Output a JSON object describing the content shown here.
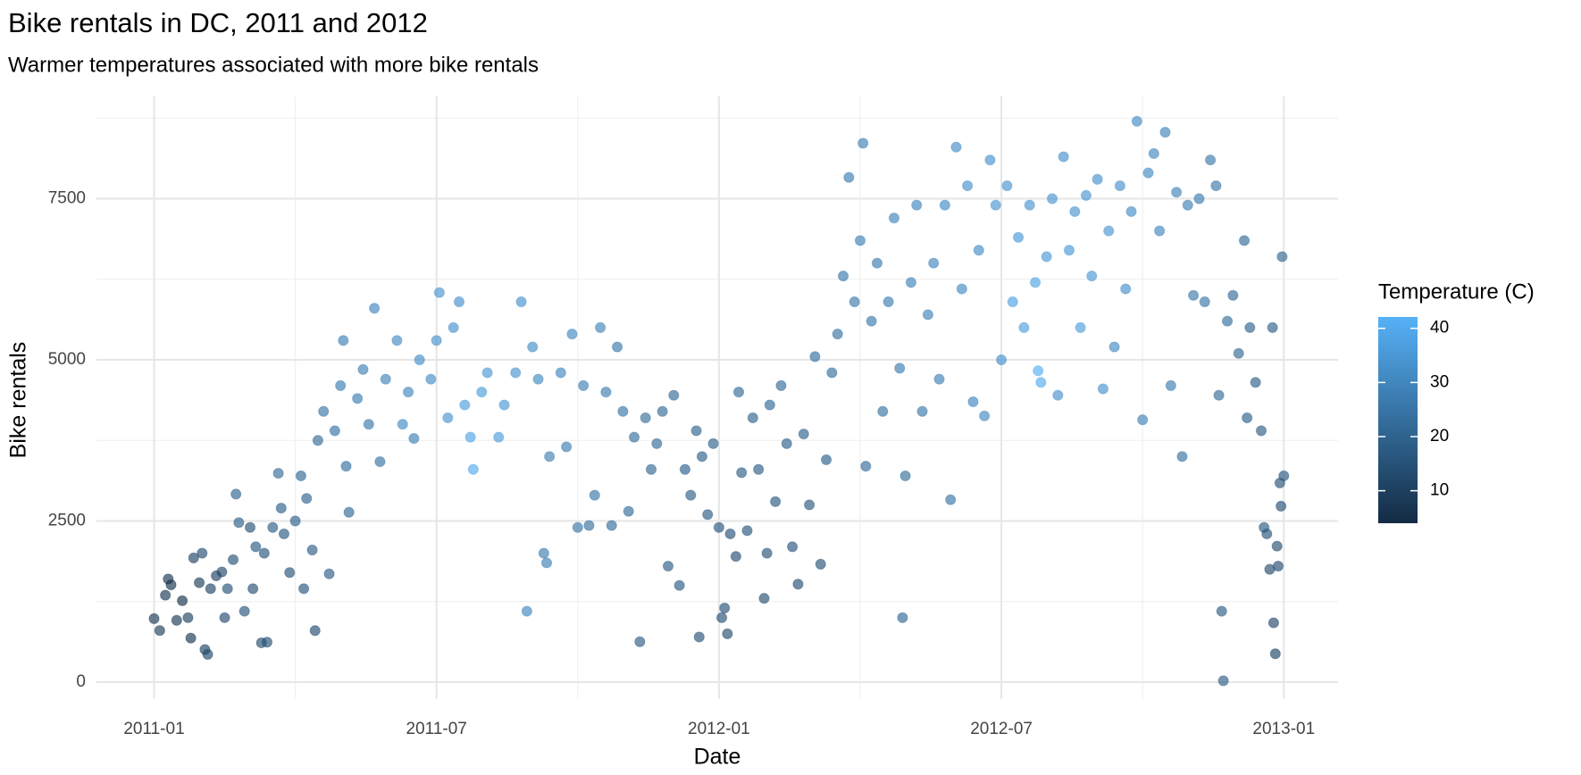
{
  "chart_data": {
    "type": "scatter",
    "title": "Bike rentals in DC, 2011 and 2012",
    "subtitle": "Warmer temperatures associated with more bike rentals",
    "x_label": "Date",
    "y_label": "Bike rentals",
    "xlim": [
      2010.898,
      2013.096
    ],
    "xticks": [
      {
        "value": 2011.0,
        "label": "2011-01"
      },
      {
        "value": 2011.5,
        "label": "2011-07"
      },
      {
        "value": 2012.0,
        "label": "2012-01"
      },
      {
        "value": 2012.5,
        "label": "2012-07"
      },
      {
        "value": 2013.0,
        "label": "2013-01"
      }
    ],
    "ylim": [
      -263,
      9086
    ],
    "yticks": [
      0,
      2500,
      5000,
      7500
    ],
    "grid": true,
    "opacity": 0.65,
    "colorbar": {
      "title": "Temperature (C)",
      "range": [
        4,
        42.1
      ],
      "ticks": [
        10,
        20,
        30,
        40
      ],
      "low": "#132B43",
      "high": "#56B1F7"
    },
    "x": [
      2011.0,
      2011.01,
      2011.02,
      2011.025,
      2011.03,
      2011.04,
      2011.05,
      2011.06,
      2011.065,
      2011.07,
      2011.08,
      2011.085,
      2011.09,
      2011.095,
      2011.1,
      2011.11,
      2011.12,
      2011.125,
      2011.13,
      2011.14,
      2011.145,
      2011.15,
      2011.16,
      2011.17,
      2011.175,
      2011.18,
      2011.19,
      2011.195,
      2011.2,
      2011.21,
      2011.22,
      2011.225,
      2011.23,
      2011.24,
      2011.25,
      2011.26,
      2011.265,
      2011.27,
      2011.28,
      2011.285,
      2011.29,
      2011.3,
      2011.31,
      2011.32,
      2011.33,
      2011.335,
      2011.34,
      2011.345,
      2011.36,
      2011.37,
      2011.38,
      2011.39,
      2011.4,
      2011.41,
      2011.43,
      2011.44,
      2011.45,
      2011.46,
      2011.47,
      2011.49,
      2011.5,
      2011.505,
      2011.52,
      2011.53,
      2011.54,
      2011.55,
      2011.56,
      2011.565,
      2011.58,
      2011.59,
      2011.61,
      2011.62,
      2011.64,
      2011.65,
      2011.66,
      2011.67,
      2011.68,
      2011.69,
      2011.695,
      2011.7,
      2011.72,
      2011.73,
      2011.74,
      2011.75,
      2011.76,
      2011.77,
      2011.78,
      2011.79,
      2011.8,
      2011.81,
      2011.82,
      2011.83,
      2011.84,
      2011.85,
      2011.86,
      2011.87,
      2011.88,
      2011.89,
      2011.9,
      2011.91,
      2011.92,
      2011.93,
      2011.94,
      2011.95,
      2011.96,
      2011.965,
      2011.97,
      2011.98,
      2011.99,
      2012.0,
      2012.005,
      2012.01,
      2012.015,
      2012.02,
      2012.03,
      2012.035,
      2012.04,
      2012.05,
      2012.06,
      2012.07,
      2012.08,
      2012.085,
      2012.09,
      2012.1,
      2012.11,
      2012.12,
      2012.13,
      2012.14,
      2012.15,
      2012.16,
      2012.17,
      2012.18,
      2012.19,
      2012.2,
      2012.21,
      2012.22,
      2012.23,
      2012.24,
      2012.25,
      2012.255,
      2012.26,
      2012.27,
      2012.28,
      2012.29,
      2012.3,
      2012.31,
      2012.32,
      2012.325,
      2012.33,
      2012.34,
      2012.35,
      2012.36,
      2012.37,
      2012.38,
      2012.39,
      2012.4,
      2012.41,
      2012.42,
      2012.43,
      2012.44,
      2012.45,
      2012.46,
      2012.47,
      2012.48,
      2012.49,
      2012.5,
      2012.51,
      2012.52,
      2012.53,
      2012.54,
      2012.55,
      2012.56,
      2012.565,
      2012.57,
      2012.58,
      2012.59,
      2012.6,
      2012.61,
      2012.62,
      2012.63,
      2012.64,
      2012.65,
      2012.66,
      2012.67,
      2012.68,
      2012.69,
      2012.7,
      2012.71,
      2012.72,
      2012.73,
      2012.74,
      2012.75,
      2012.76,
      2012.77,
      2012.78,
      2012.79,
      2012.8,
      2012.81,
      2012.82,
      2012.83,
      2012.84,
      2012.85,
      2012.86,
      2012.87,
      2012.88,
      2012.885,
      2012.89,
      2012.893,
      2012.9,
      2012.91,
      2012.92,
      2012.93,
      2012.935,
      2012.94,
      2012.95,
      2012.96,
      2012.965,
      2012.97,
      2012.975,
      2012.98,
      2012.982,
      2012.985,
      2012.988,
      2012.99,
      2012.993,
      2012.995,
      2012.997,
      2013.0
    ],
    "values": [
      985,
      801,
      1349,
      1600,
      1510,
      959,
      1263,
      1000,
      683,
      1927,
      1543,
      2000,
      506,
      431,
      1450,
      1650,
      1710,
      1000,
      1450,
      1900,
      2917,
      2475,
      1100,
      2400,
      1450,
      2100,
      610,
      2000,
      620,
      2400,
      3240,
      2700,
      2300,
      1700,
      2500,
      3200,
      1450,
      2850,
      2050,
      800,
      3750,
      4200,
      1680,
      3900,
      4600,
      5300,
      3350,
      2635,
      4400,
      4850,
      4000,
      5800,
      3420,
      4700,
      5300,
      4000,
      4500,
      3780,
      5000,
      4700,
      5300,
      6043,
      4100,
      5500,
      5900,
      4300,
      3800,
      3300,
      4500,
      4800,
      3800,
      4300,
      4800,
      5900,
      1100,
      5200,
      4700,
      2000,
      1850,
      3500,
      4800,
      3650,
      5400,
      2400,
      4600,
      2430,
      2900,
      5500,
      4500,
      2430,
      5200,
      4200,
      2650,
      3800,
      627,
      4100,
      3300,
      3700,
      4200,
      1800,
      4450,
      1500,
      3300,
      2900,
      3900,
      700,
      3500,
      2600,
      3700,
      2400,
      1000,
      1150,
      750,
      2300,
      1950,
      4500,
      3250,
      2350,
      4100,
      3300,
      1300,
      2000,
      4300,
      2800,
      4600,
      3700,
      2100,
      1520,
      3850,
      2750,
      5050,
      1830,
      3450,
      4800,
      5400,
      6300,
      7830,
      5900,
      6850,
      8360,
      3350,
      5600,
      6500,
      4200,
      5900,
      7200,
      4870,
      1000,
      3200,
      6200,
      7400,
      4200,
      5700,
      6500,
      4700,
      7400,
      2830,
      8300,
      6100,
      7700,
      4350,
      6700,
      4130,
      8100,
      7400,
      5000,
      7700,
      5900,
      6900,
      5500,
      7400,
      6200,
      4830,
      4650,
      6600,
      7500,
      4450,
      8150,
      6700,
      7300,
      5500,
      7550,
      6300,
      7800,
      4550,
      7000,
      5200,
      7700,
      6100,
      7300,
      8700,
      4070,
      7900,
      8200,
      7000,
      8530,
      4600,
      7600,
      3500,
      7400,
      6000,
      7500,
      5900,
      8100,
      7700,
      4450,
      1100,
      22,
      5600,
      6000,
      5100,
      6850,
      4100,
      5500,
      4650,
      3900,
      2400,
      2300,
      1750,
      5500,
      920,
      440,
      2110,
      1800,
      3090,
      2730,
      6600,
      3200
    ],
    "color_values": [
      8,
      9,
      8,
      7,
      6,
      8,
      5,
      10,
      7,
      11,
      9,
      13,
      11,
      12,
      11,
      10,
      12,
      13,
      15,
      15,
      20,
      18,
      16,
      15,
      14,
      17,
      13,
      16,
      14,
      18,
      22,
      19,
      17,
      15,
      19,
      21,
      16,
      20,
      18,
      13,
      22,
      25,
      18,
      24,
      27,
      28,
      23,
      21,
      27,
      28,
      26,
      30,
      24,
      29,
      31,
      31,
      30,
      28,
      32,
      32,
      33,
      34,
      34,
      33,
      33,
      36,
      38,
      40,
      36,
      35,
      36,
      35,
      34,
      33,
      30,
      32,
      31,
      27,
      28,
      28,
      30,
      27,
      30,
      25,
      28,
      24,
      25,
      29,
      27,
      23,
      26,
      25,
      22,
      23,
      18,
      23,
      21,
      22,
      22,
      18,
      22,
      17,
      19,
      18,
      20,
      15,
      19,
      17,
      19,
      16,
      14,
      15,
      13,
      15,
      14,
      22,
      18,
      16,
      20,
      18,
      14,
      15,
      21,
      17,
      22,
      19,
      16,
      14,
      20,
      17,
      23,
      15,
      19,
      23,
      24,
      26,
      27,
      26,
      28,
      28,
      22,
      26,
      27,
      24,
      27,
      29,
      27,
      21,
      23,
      29,
      30,
      26,
      29,
      30,
      28,
      31,
      25,
      32,
      31,
      33,
      30,
      32,
      31,
      33,
      34,
      33,
      34,
      37,
      35,
      37,
      34,
      38,
      41,
      40,
      35,
      34,
      33,
      33,
      35,
      34,
      36,
      34,
      35,
      33,
      33,
      34,
      31,
      33,
      33,
      32,
      31,
      28,
      31,
      30,
      30,
      29,
      27,
      29,
      24,
      28,
      26,
      27,
      25,
      26,
      26,
      22,
      18,
      18,
      23,
      22,
      21,
      22,
      19,
      20,
      19,
      18,
      17,
      16,
      13,
      19,
      12,
      11,
      14,
      13,
      15,
      14,
      21,
      16
    ]
  }
}
